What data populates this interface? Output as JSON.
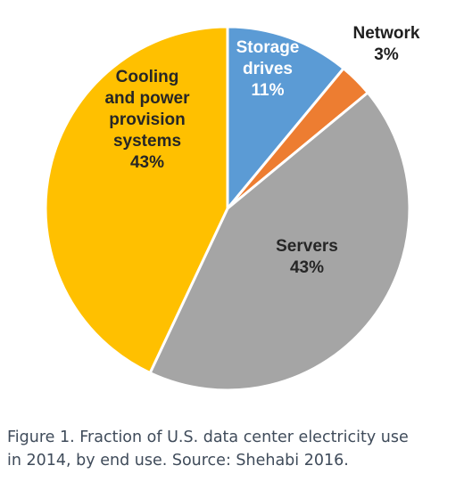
{
  "chart_data": {
    "type": "pie",
    "start_angle_deg": 0,
    "direction": "clockwise",
    "slices": [
      {
        "label": [
          "Storage",
          "drives"
        ],
        "percent_label": "11%",
        "value": 11,
        "color": "#5b9bd5",
        "label_color": "#ffffff"
      },
      {
        "label": [
          "Network"
        ],
        "percent_label": "3%",
        "value": 3,
        "color": "#ed7d31",
        "label_color": "#1f1f1f"
      },
      {
        "label": [
          "Servers"
        ],
        "percent_label": "43%",
        "value": 43,
        "color": "#a5a5a5",
        "label_color": "#262626"
      },
      {
        "label": [
          "Cooling",
          "and power",
          "provision",
          "systems"
        ],
        "percent_label": "43%",
        "value": 43,
        "color": "#ffc000",
        "label_color": "#262626"
      }
    ]
  },
  "caption": {
    "line1": "Figure 1. Fraction of U.S. data center electricity use",
    "line2": "in 2014, by end use. Source: Shehabi 2016."
  }
}
